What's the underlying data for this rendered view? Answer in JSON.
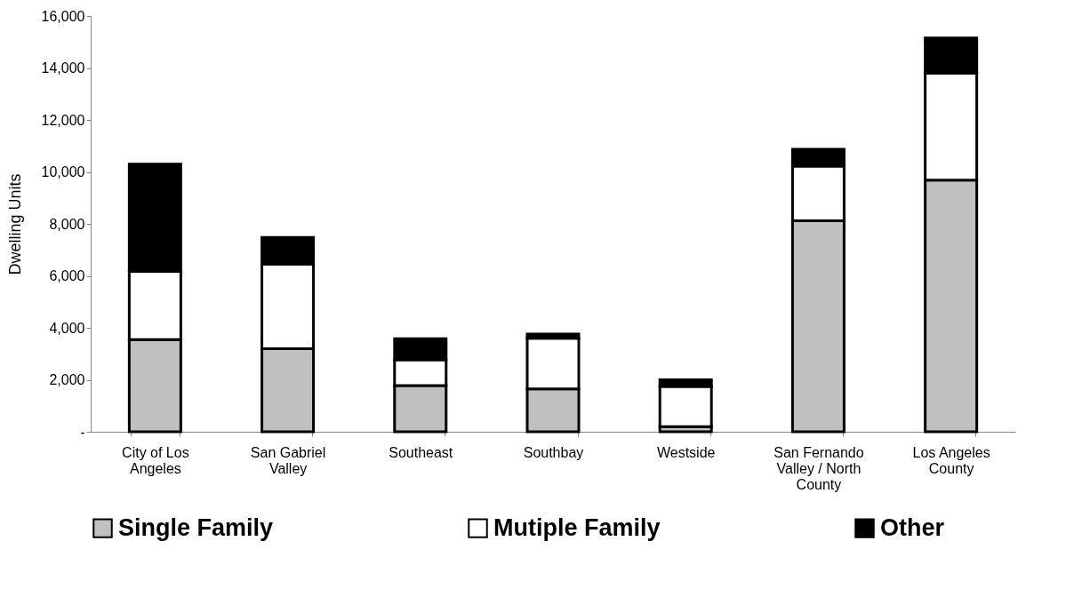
{
  "chart_data": {
    "type": "bar",
    "stacked": true,
    "ylabel": "Dwelling Units",
    "categories": [
      "City of Los Angeles",
      "San Gabriel Valley",
      "Southeast",
      "Southbay",
      "Westside",
      "San Fernando Valley / North County",
      "Los Angeles County"
    ],
    "series": [
      {
        "name": "Single Family",
        "color": "#c0c0c0",
        "values": [
          3550,
          3200,
          1780,
          1650,
          200,
          8120,
          9680
        ]
      },
      {
        "name": "Mutiple Family",
        "color": "#ffffff",
        "values": [
          2620,
          3250,
          990,
          1950,
          1540,
          2100,
          4120
        ]
      },
      {
        "name": "Other",
        "color": "#000000",
        "values": [
          4130,
          1030,
          810,
          160,
          260,
          650,
          1350
        ]
      }
    ],
    "ylim": [
      0,
      16000
    ],
    "yticks": [
      {
        "value": 0,
        "label": "-"
      },
      {
        "value": 2000,
        "label": "2,000"
      },
      {
        "value": 4000,
        "label": "4,000"
      },
      {
        "value": 6000,
        "label": "6,000"
      },
      {
        "value": 8000,
        "label": "8,000"
      },
      {
        "value": 10000,
        "label": "10,000"
      },
      {
        "value": 12000,
        "label": "12,000"
      },
      {
        "value": 14000,
        "label": "14,000"
      },
      {
        "value": 16000,
        "label": "16,000"
      }
    ],
    "grid": false,
    "legend": "bottom"
  }
}
